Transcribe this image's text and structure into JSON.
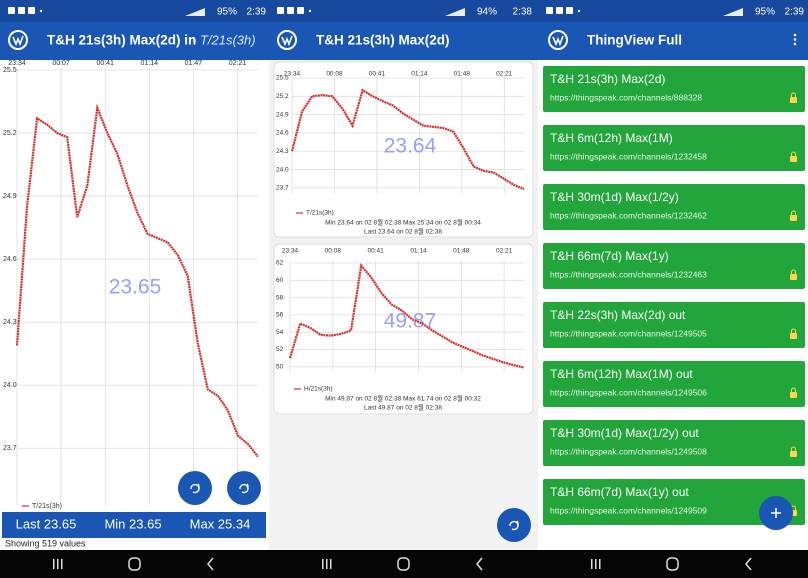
{
  "screens": [
    {
      "status": {
        "battery": "95%",
        "time": "2:39"
      },
      "app_bar": {
        "title": "T&H 21s(3h) Max(2d) in",
        "subtitle": "- T/21s(3h)"
      },
      "chart": {
        "type": "line",
        "xticks": [
          "23:34",
          "00:07",
          "00:41",
          "01:14",
          "01:47",
          "02:21"
        ],
        "ylim": [
          23.43,
          25.5
        ],
        "yticks": [
          25.5,
          25.2,
          24.9,
          24.6,
          24.3,
          {
            "value": 24,
            "label": "24.0"
          },
          23.7
        ],
        "series": [
          {
            "name": "T/21s(3h)",
            "color": "#d32f2f",
            "values": [
              24.19,
              24.85,
              25.27,
              25.24,
              25.2,
              25.18,
              24.8,
              24.95,
              25.32,
              25.2,
              25.1,
              24.95,
              24.82,
              24.72,
              24.7,
              24.68,
              24.62,
              24.52,
              24.2,
              23.98,
              23.95,
              23.88,
              23.76,
              23.72,
              23.66
            ]
          }
        ],
        "center_label": "23.65"
      },
      "stats": {
        "last": "Last 23.65",
        "min": "Min 23.65",
        "max": "Max 25.34"
      },
      "footer": "Showing  519 values"
    },
    {
      "status": {
        "battery": "94%",
        "time": "2:38"
      },
      "app_bar": {
        "title": "T&H 21s(3h) Max(2d)"
      },
      "charts": [
        {
          "type": "line",
          "xticks": [
            "23:34",
            "00:08",
            "00:41",
            "01:14",
            "01:48",
            "02:21"
          ],
          "ylim": [
            23.6,
            25.5
          ],
          "yticks": [
            25.5,
            25.2,
            24.9,
            24.6,
            24.3,
            {
              "value": 24,
              "label": "24.0"
            },
            23.7
          ],
          "series": [
            {
              "name": "T/21s(3h)",
              "color": "#d32f2f",
              "values": [
                24.3,
                24.95,
                25.2,
                25.22,
                25.2,
                25.0,
                24.72,
                25.3,
                25.2,
                25.12,
                25.05,
                24.92,
                24.82,
                24.72,
                24.7,
                24.68,
                24.62,
                24.35,
                24.05,
                23.98,
                23.95,
                23.85,
                23.75,
                23.68
              ]
            }
          ],
          "center_label": "23.64",
          "notes": [
            "Min  23.64 on 02 8월 02:38    Max  25.34 on 02 8월 00:34",
            "Last  23.64 on 02 8월 02:38"
          ]
        },
        {
          "type": "line",
          "xticks": [
            "23:34",
            "00:08",
            "00:41",
            "01:14",
            "01:48",
            "02:21"
          ],
          "ylim": [
            49.4,
            62
          ],
          "yticks": [
            62,
            60,
            58,
            56,
            54,
            52,
            50
          ],
          "series": [
            {
              "name": "H/21s(3h)",
              "color": "#d32f2f",
              "values": [
                51,
                55,
                54.5,
                53.7,
                53.6,
                53.8,
                54.2,
                61.7,
                60.3,
                58.5,
                57.2,
                56.5,
                55.5,
                55.0,
                54.2,
                53.5,
                52.8,
                52.3,
                51.8,
                51.3,
                50.9,
                50.5,
                50.2,
                49.9
              ]
            }
          ],
          "center_label": "49.87",
          "notes": [
            "Min  49.87 on 02 8월 02:38    Max  61.74 on 02 8월 00:32",
            "Last  49.87 on 02 8월 02:38"
          ]
        }
      ]
    },
    {
      "status": {
        "battery": "95%",
        "time": "2:39"
      },
      "app_bar": {
        "title": "ThingView Full"
      },
      "list": [
        {
          "title": "T&H 21s(3h) Max(2d)",
          "url": "https://thingspeak.com/channels/888328"
        },
        {
          "title": "T&H 6m(12h) Max(1M)",
          "url": "https://thingspeak.com/channels/1232458"
        },
        {
          "title": "T&H 30m(1d) Max(1/2y)",
          "url": "https://thingspeak.com/channels/1232462"
        },
        {
          "title": "T&H 66m(7d) Max(1y)",
          "url": "https://thingspeak.com/channels/1232463"
        },
        {
          "title": "T&H 22s(3h) Max(2d) out",
          "url": "https://thingspeak.com/channels/1249505"
        },
        {
          "title": "T&H 6m(12h) Max(1M) out",
          "url": "https://thingspeak.com/channels/1249506"
        },
        {
          "title": "T&H 30m(1d) Max(1/2y) out",
          "url": "https://thingspeak.com/channels/1249508"
        },
        {
          "title": "T&H 66m(7d) Max(1y) out",
          "url": "https://thingspeak.com/channels/1249509"
        }
      ]
    }
  ]
}
